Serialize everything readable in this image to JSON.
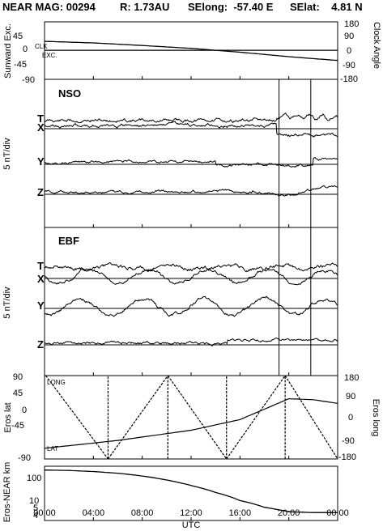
{
  "header": {
    "title": "NEAR MAG: 00294",
    "distance": "R: 1.73AU",
    "selong": "SElong:  -57.40 E",
    "selat": "SElat:    4.81 N"
  },
  "x_axis": {
    "label": "UTC",
    "tick_labels": [
      "00:00",
      "04:00",
      "08:00",
      "12:00",
      "16:00",
      "20:00",
      "00:00"
    ]
  },
  "chart_data": [
    {
      "type": "line",
      "panel": "sunward",
      "ylabel_left": "Sunward Exc.",
      "ylabel_right": "Clock Angle",
      "left_ticks": [
        "45",
        "0",
        "-45",
        "-90"
      ],
      "right_ticks": [
        "180",
        "90",
        "0",
        "-90",
        "-180"
      ],
      "ylim_left": [
        -90,
        90
      ],
      "ylim_right": [
        -180,
        180
      ],
      "annotations": [
        "CLK",
        "EXC."
      ],
      "x_hours": [
        0,
        4,
        8,
        12,
        16,
        20,
        24
      ],
      "series": [
        {
          "name": "CLK",
          "values": [
            58,
            48,
            32,
            14,
            -10,
            -38,
            -62
          ]
        },
        {
          "name": "EXC.",
          "values": [
            1,
            1,
            1,
            1,
            1,
            1,
            1
          ]
        }
      ]
    },
    {
      "type": "line",
      "panel": "NSO",
      "title": "NSO",
      "ylabel": "5 nT/div",
      "components": [
        "T",
        "X",
        "Y",
        "Z"
      ],
      "vertical_markers_hours": [
        19.2,
        21.8
      ]
    },
    {
      "type": "line",
      "panel": "EBF",
      "title": "EBF",
      "ylabel": "5 nT/div",
      "components": [
        "T",
        "X",
        "Y",
        "Z"
      ],
      "vertical_markers_hours": [
        19.2,
        21.8
      ]
    },
    {
      "type": "line",
      "panel": "eros",
      "ylabel_left": "Eros lat",
      "ylabel_right": "Eros long",
      "left_ticks": [
        "90",
        "45",
        "0",
        "-45",
        "-90"
      ],
      "right_ticks": [
        "180",
        "90",
        "0",
        "-90",
        "-180"
      ],
      "ylim_left": [
        -90,
        90
      ],
      "ylim_right": [
        -180,
        180
      ],
      "annotations": [
        "LONG",
        "LAT"
      ],
      "series": [
        {
          "name": "LAT",
          "x_hours": [
            0,
            6,
            12,
            16,
            20,
            22,
            24
          ],
          "values": [
            -67,
            -50,
            -28,
            -5,
            40,
            38,
            30
          ]
        },
        {
          "name": "LONG",
          "x_hours": [
            0.1,
            5.2,
            10.1,
            14.9,
            19.7,
            24
          ],
          "values": [
            180,
            -180,
            180,
            -180,
            180,
            -180
          ]
        }
      ]
    },
    {
      "type": "line",
      "panel": "distance",
      "ylabel": "Eros-NEAR km",
      "y_scale": "log",
      "ticks": [
        "100",
        "10",
        "5",
        "4"
      ],
      "x_hours": [
        0,
        2,
        4,
        6,
        8,
        10,
        12,
        14,
        16,
        18,
        20,
        22,
        24
      ],
      "values": [
        100,
        97,
        90,
        80,
        66,
        50,
        34,
        21,
        12,
        7.5,
        5.5,
        5.2,
        5.2
      ]
    }
  ]
}
